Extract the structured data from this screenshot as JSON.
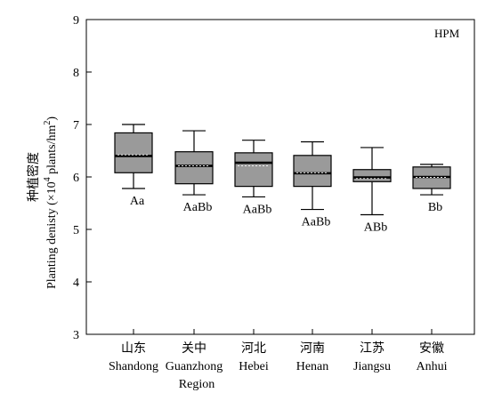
{
  "chart_data": {
    "type": "box",
    "panel_label": "HPM",
    "ylabel_cn": "种植密度",
    "ylabel_en_prefix": "Planting denisty (×10",
    "ylabel_en_sup1": "4",
    "ylabel_en_mid": " plants/hm",
    "ylabel_en_sup2": "2",
    "ylabel_en_suffix": ")",
    "xlabel_line": "Region",
    "ylim": [
      3,
      9
    ],
    "yticks": [
      "3",
      "4",
      "5",
      "6",
      "7",
      "8",
      "9"
    ],
    "categories": [
      {
        "cn": "山东",
        "en": "Shandong"
      },
      {
        "cn": "关中",
        "en": "Guanzhong"
      },
      {
        "cn": "河北",
        "en": "Hebei"
      },
      {
        "cn": "河南",
        "en": "Henan"
      },
      {
        "cn": "江苏",
        "en": "Jiangsu"
      },
      {
        "cn": "安徽",
        "en": "Anhui"
      }
    ],
    "boxes": [
      {
        "min": 5.78,
        "q1": 6.08,
        "median": 6.4,
        "mean": 6.42,
        "q3": 6.84,
        "max": 7.0,
        "sig": "Aa"
      },
      {
        "min": 5.66,
        "q1": 5.87,
        "median": 6.21,
        "mean": 6.21,
        "q3": 6.48,
        "max": 6.88,
        "sig": "AaBb"
      },
      {
        "min": 5.62,
        "q1": 5.82,
        "median": 6.27,
        "mean": 6.21,
        "q3": 6.46,
        "max": 6.7,
        "sig": "AaBb"
      },
      {
        "min": 5.38,
        "q1": 5.82,
        "median": 6.07,
        "mean": 6.08,
        "q3": 6.41,
        "max": 6.67,
        "sig": "AaBb"
      },
      {
        "min": 5.28,
        "q1": 5.91,
        "median": 5.99,
        "mean": 5.97,
        "q3": 6.14,
        "max": 6.56,
        "sig": "ABb"
      },
      {
        "min": 5.66,
        "q1": 5.78,
        "median": 6.0,
        "mean": 5.99,
        "q3": 6.19,
        "max": 6.24,
        "sig": "Bb"
      }
    ],
    "colors": {
      "box_fill": "#9a9a9a",
      "line": "#000000"
    }
  }
}
